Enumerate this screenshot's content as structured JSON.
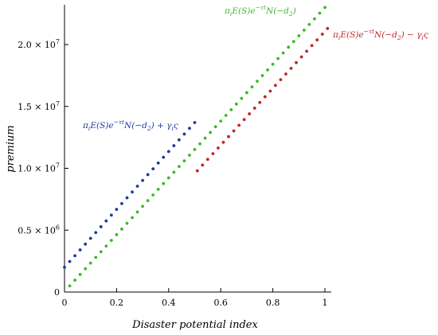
{
  "chart_data": {
    "type": "scatter",
    "xlabel": "Disaster potential index",
    "ylabel": "premium",
    "xlim": [
      0,
      1.02
    ],
    "ylim": [
      0,
      23500000
    ],
    "x_ticks": [
      {
        "value": 0,
        "label": "0"
      },
      {
        "value": 0.2,
        "label": "0.2"
      },
      {
        "value": 0.4,
        "label": "0.4"
      },
      {
        "value": 0.6,
        "label": "0.6"
      },
      {
        "value": 0.8,
        "label": "0.8"
      },
      {
        "value": 1,
        "label": "1"
      }
    ],
    "y_ticks": [
      {
        "value": 0,
        "mantissa": "0",
        "exponent": ""
      },
      {
        "value": 5000000,
        "mantissa": "0.5 × 10",
        "exponent": "6"
      },
      {
        "value": 10000000,
        "mantissa": "1.0 × 10",
        "exponent": "7"
      },
      {
        "value": 15000000,
        "mantissa": "1.5 × 10",
        "exponent": "7"
      },
      {
        "value": 20000000,
        "mantissa": "2.0 × 10",
        "exponent": "7"
      }
    ],
    "grid": false,
    "legend": "none",
    "series": [
      {
        "name": "πiE(S)e−τtN(−d2) + γiς",
        "color": "#1a3a9e",
        "x_start": 0.0,
        "x_end": 0.5,
        "x_step": 0.02,
        "y_start": 2000000,
        "y_end": 13700000
      },
      {
        "name": "πiE(S)e−τtN(−d2)",
        "color": "#3cb82a",
        "x_start": 0.02,
        "x_end": 1.0,
        "x_step": 0.02,
        "y_start": 500000,
        "y_end": 23000000
      },
      {
        "name": "πiE(S)e−τtN(−d2) − γiς",
        "color": "#c42222",
        "x_start": 0.51,
        "x_end": 1.0,
        "x_step": 0.02,
        "y_start": 9800000,
        "y_end": 21300000
      }
    ]
  },
  "labels": {
    "blue": {
      "pre": "π",
      "sub1": "i",
      "mid": "E(S)e",
      "exp": "−τt",
      "post": "N(−d",
      "sub2": "2",
      "tail": ") + γ",
      "sub3": "i",
      "end": "ς"
    },
    "green": {
      "pre": "π",
      "sub1": "i",
      "mid": "E(S)e",
      "exp": "−τt",
      "post": "N(−d",
      "sub2": "2",
      "tail": ")"
    },
    "red": {
      "pre": "π",
      "sub1": "i",
      "mid": "E(S)e",
      "exp": "−τt",
      "post": "N(−d",
      "sub2": "2",
      "tail": ") − γ",
      "sub3": "i",
      "end": "ς"
    }
  }
}
